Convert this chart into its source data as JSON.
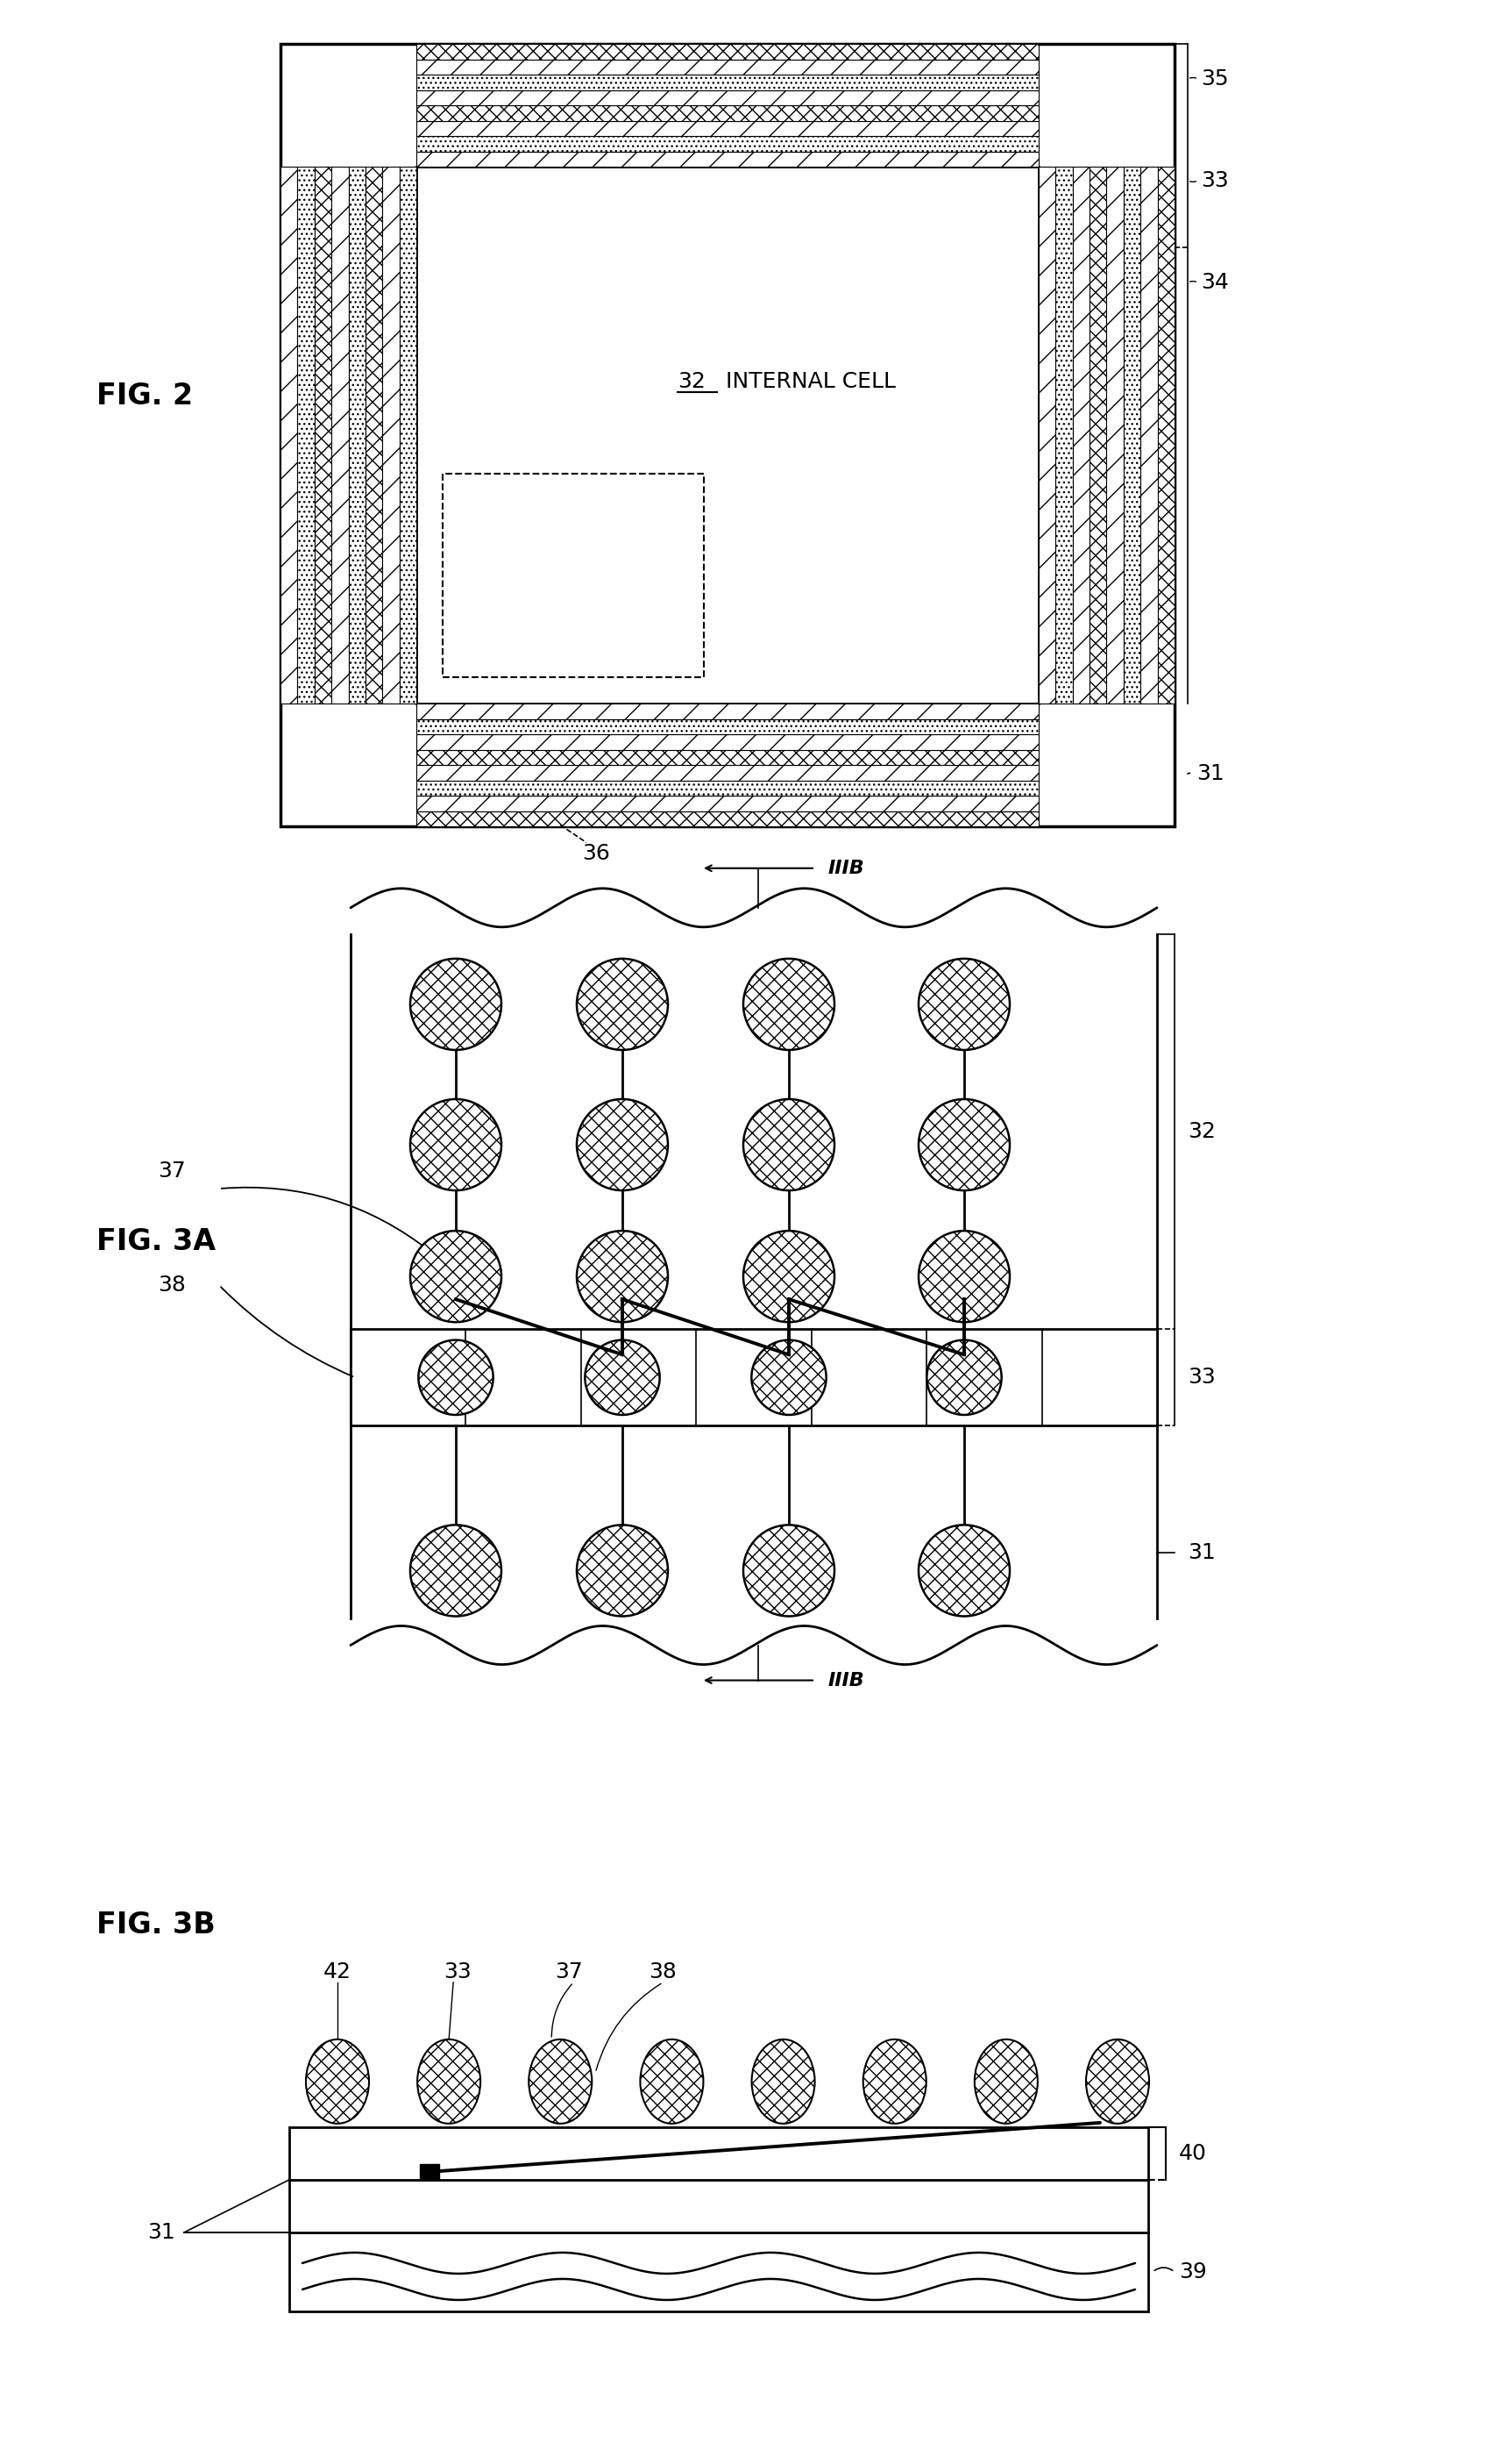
{
  "bg_color": "#ffffff",
  "fig_width": 17.25,
  "fig_height": 27.85,
  "fig2_label": "FIG. 2",
  "fig3a_label": "FIG. 3A",
  "fig3b_label": "FIG. 3B"
}
